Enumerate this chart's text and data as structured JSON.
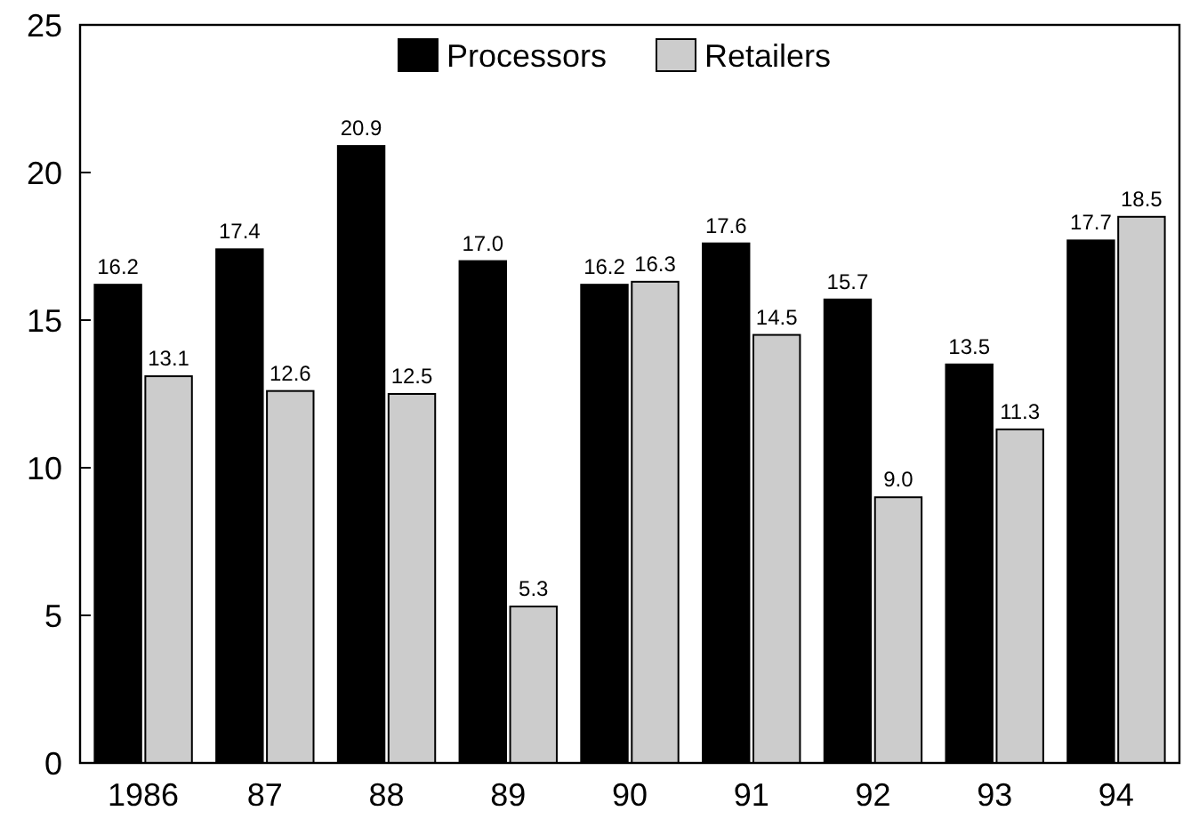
{
  "chart_data": {
    "type": "bar",
    "categories": [
      "1986",
      "87",
      "88",
      "89",
      "90",
      "91",
      "92",
      "93",
      "94"
    ],
    "series": [
      {
        "name": "Processors",
        "color": "#000000",
        "values": [
          16.2,
          17.4,
          20.9,
          17.0,
          16.2,
          17.6,
          15.7,
          13.5,
          17.7
        ],
        "value_labels": [
          "16.2",
          "17.4",
          "20.9",
          "17.0",
          "16.2",
          "17.6",
          "15.7",
          "13.5",
          "17.7"
        ]
      },
      {
        "name": "Retailers",
        "color": "#cccccc",
        "values": [
          13.1,
          12.6,
          12.5,
          5.3,
          16.3,
          14.5,
          9.0,
          11.3,
          18.5
        ],
        "value_labels": [
          "13.1",
          "12.6",
          "12.5",
          "5.3",
          "16.3",
          "14.5",
          "9.0",
          "11.3",
          "18.5"
        ]
      }
    ],
    "ylim": [
      0,
      25
    ],
    "yticks": [
      0,
      5,
      10,
      15,
      20,
      25
    ],
    "grid": false,
    "legend": "top"
  }
}
